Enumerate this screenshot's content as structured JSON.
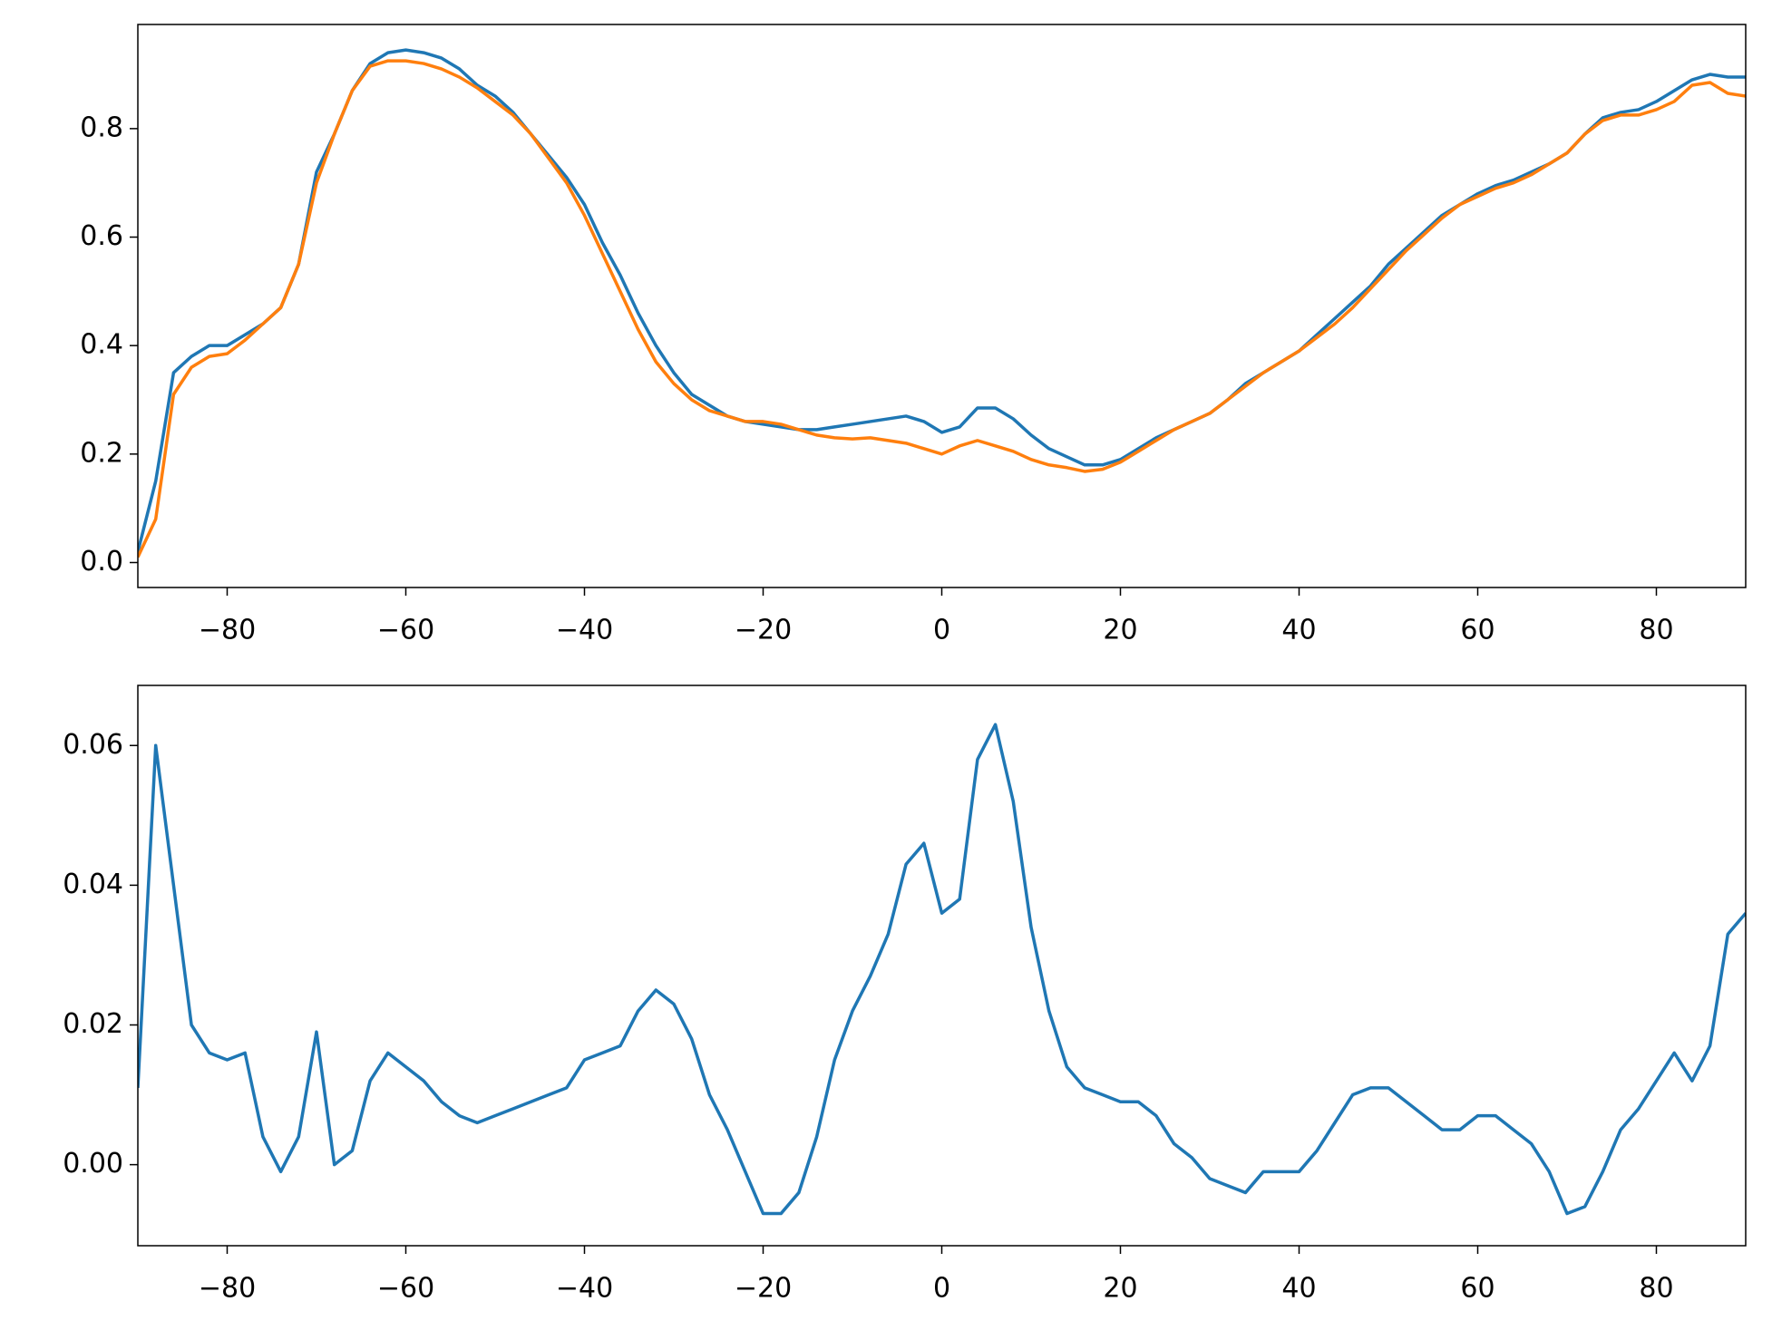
{
  "chart_data": [
    {
      "type": "line",
      "xlim": [
        -90,
        90
      ],
      "ylim": [
        -0.046,
        0.992
      ],
      "xticks": [
        {
          "value": -80,
          "label": "−80"
        },
        {
          "value": -60,
          "label": "−60"
        },
        {
          "value": -40,
          "label": "−40"
        },
        {
          "value": -20,
          "label": "−20"
        },
        0,
        20,
        40,
        60,
        80
      ],
      "yticks": [
        {
          "value": 0,
          "label": "0.0"
        },
        0.2,
        0.4,
        0.6,
        0.8
      ],
      "x": [
        -90,
        -88,
        -86,
        -84,
        -82,
        -80,
        -78,
        -76,
        -74,
        -72,
        -70,
        -68,
        -66,
        -64,
        -62,
        -60,
        -58,
        -56,
        -54,
        -52,
        -50,
        -48,
        -46,
        -44,
        -42,
        -40,
        -38,
        -36,
        -34,
        -32,
        -30,
        -28,
        -26,
        -24,
        -22,
        -20,
        -18,
        -16,
        -14,
        -12,
        -10,
        -8,
        -6,
        -4,
        -2,
        0,
        2,
        4,
        6,
        8,
        10,
        12,
        14,
        16,
        18,
        20,
        22,
        24,
        26,
        28,
        30,
        32,
        34,
        36,
        38,
        40,
        42,
        44,
        46,
        48,
        50,
        52,
        54,
        56,
        58,
        60,
        62,
        64,
        66,
        68,
        70,
        72,
        74,
        76,
        78,
        80,
        82,
        84,
        86,
        88,
        90
      ],
      "series": [
        {
          "color": "#1f77b4",
          "values": [
            0.02,
            0.15,
            0.35,
            0.38,
            0.4,
            0.4,
            0.42,
            0.44,
            0.47,
            0.55,
            0.72,
            0.79,
            0.87,
            0.92,
            0.94,
            0.945,
            0.94,
            0.93,
            0.91,
            0.88,
            0.86,
            0.83,
            0.79,
            0.75,
            0.71,
            0.66,
            0.59,
            0.53,
            0.46,
            0.4,
            0.35,
            0.31,
            0.29,
            0.27,
            0.26,
            0.255,
            0.25,
            0.245,
            0.245,
            0.25,
            0.255,
            0.26,
            0.265,
            0.27,
            0.26,
            0.24,
            0.25,
            0.285,
            0.285,
            0.265,
            0.235,
            0.21,
            0.195,
            0.18,
            0.18,
            0.19,
            0.21,
            0.23,
            0.245,
            0.26,
            0.275,
            0.3,
            0.33,
            0.35,
            0.37,
            0.39,
            0.42,
            0.45,
            0.48,
            0.51,
            0.55,
            0.58,
            0.61,
            0.64,
            0.66,
            0.68,
            0.695,
            0.705,
            0.72,
            0.735,
            0.755,
            0.79,
            0.82,
            0.83,
            0.835,
            0.85,
            0.87,
            0.89,
            0.9,
            0.895,
            0.895
          ]
        },
        {
          "color": "#ff7f0e",
          "values": [
            0.01,
            0.08,
            0.31,
            0.36,
            0.38,
            0.385,
            0.41,
            0.44,
            0.47,
            0.55,
            0.7,
            0.79,
            0.87,
            0.915,
            0.925,
            0.925,
            0.92,
            0.91,
            0.895,
            0.875,
            0.85,
            0.825,
            0.79,
            0.745,
            0.7,
            0.64,
            0.57,
            0.5,
            0.43,
            0.37,
            0.33,
            0.3,
            0.28,
            0.27,
            0.26,
            0.26,
            0.255,
            0.245,
            0.235,
            0.23,
            0.228,
            0.23,
            0.225,
            0.22,
            0.21,
            0.2,
            0.215,
            0.225,
            0.215,
            0.205,
            0.19,
            0.18,
            0.175,
            0.168,
            0.172,
            0.185,
            0.205,
            0.225,
            0.245,
            0.26,
            0.275,
            0.3,
            0.325,
            0.35,
            0.37,
            0.39,
            0.415,
            0.44,
            0.47,
            0.505,
            0.54,
            0.575,
            0.605,
            0.635,
            0.66,
            0.675,
            0.69,
            0.7,
            0.715,
            0.735,
            0.755,
            0.79,
            0.815,
            0.825,
            0.825,
            0.835,
            0.85,
            0.88,
            0.885,
            0.865,
            0.86
          ]
        }
      ]
    },
    {
      "type": "line",
      "xlim": [
        -90,
        90
      ],
      "ylim": [
        -0.0116,
        0.0686
      ],
      "xticks": [
        {
          "value": -80,
          "label": "−80"
        },
        {
          "value": -60,
          "label": "−60"
        },
        {
          "value": -40,
          "label": "−40"
        },
        {
          "value": -20,
          "label": "−20"
        },
        0,
        20,
        40,
        60,
        80
      ],
      "yticks": [
        {
          "value": 0,
          "label": "0.00"
        },
        0.02,
        0.04,
        0.06
      ],
      "x": [
        -90,
        -88,
        -86,
        -84,
        -82,
        -80,
        -78,
        -76,
        -74,
        -72,
        -70,
        -68,
        -66,
        -64,
        -62,
        -60,
        -58,
        -56,
        -54,
        -52,
        -50,
        -48,
        -46,
        -44,
        -42,
        -40,
        -38,
        -36,
        -34,
        -32,
        -30,
        -28,
        -26,
        -24,
        -22,
        -20,
        -18,
        -16,
        -14,
        -12,
        -10,
        -8,
        -6,
        -4,
        -2,
        0,
        2,
        4,
        6,
        8,
        10,
        12,
        14,
        16,
        18,
        20,
        22,
        24,
        26,
        28,
        30,
        32,
        34,
        36,
        38,
        40,
        42,
        44,
        46,
        48,
        50,
        52,
        54,
        56,
        58,
        60,
        62,
        64,
        66,
        68,
        70,
        72,
        74,
        76,
        78,
        80,
        82,
        84,
        86,
        88,
        90
      ],
      "series": [
        {
          "color": "#1f77b4",
          "values": [
            0.011,
            0.06,
            0.04,
            0.02,
            0.016,
            0.015,
            0.016,
            0.004,
            -0.001,
            0.004,
            0.019,
            0.0,
            0.002,
            0.012,
            0.016,
            0.014,
            0.012,
            0.009,
            0.007,
            0.006,
            0.007,
            0.008,
            0.009,
            0.01,
            0.011,
            0.015,
            0.016,
            0.017,
            0.022,
            0.025,
            0.023,
            0.018,
            0.01,
            0.005,
            -0.001,
            -0.007,
            -0.007,
            -0.004,
            0.004,
            0.015,
            0.022,
            0.027,
            0.033,
            0.043,
            0.046,
            0.036,
            0.038,
            0.058,
            0.063,
            0.052,
            0.034,
            0.022,
            0.014,
            0.011,
            0.01,
            0.009,
            0.009,
            0.007,
            0.003,
            0.001,
            -0.002,
            -0.003,
            -0.004,
            -0.001,
            -0.001,
            -0.001,
            0.002,
            0.006,
            0.01,
            0.011,
            0.011,
            0.009,
            0.007,
            0.005,
            0.005,
            0.007,
            0.007,
            0.005,
            0.003,
            -0.001,
            -0.007,
            -0.006,
            -0.001,
            0.005,
            0.008,
            0.012,
            0.016,
            0.012,
            0.017,
            0.033,
            0.036
          ]
        }
      ]
    }
  ]
}
